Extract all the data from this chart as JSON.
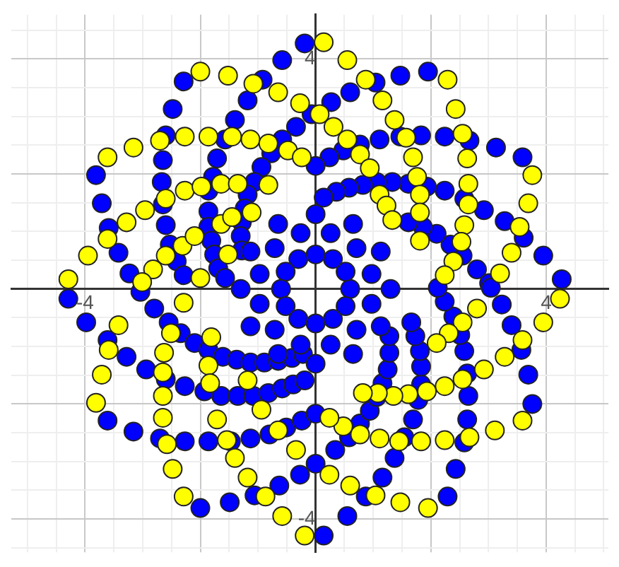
{
  "chart_data": {
    "type": "scatter",
    "grid": true,
    "marker": "circle",
    "legend": false,
    "xlim": [
      -5.28,
      5.08
    ],
    "ylim": [
      -4.58,
      4.77
    ],
    "xticks": [
      {
        "value": -5,
        "label": null
      },
      {
        "value": -4.5,
        "label": null
      },
      -4,
      {
        "value": -3.5,
        "label": null
      },
      {
        "value": -3,
        "label": null
      },
      {
        "value": -2.5,
        "label": null
      },
      {
        "value": -2,
        "label": null
      },
      {
        "value": -1.5,
        "label": null
      },
      {
        "value": -1,
        "label": null
      },
      {
        "value": -0.5,
        "label": null
      },
      {
        "value": 0,
        "label": null
      },
      {
        "value": 0.5,
        "label": null
      },
      {
        "value": 1,
        "label": null
      },
      {
        "value": 1.5,
        "label": null
      },
      {
        "value": 2,
        "label": null
      },
      {
        "value": 2.5,
        "label": null
      },
      {
        "value": 3,
        "label": null
      },
      {
        "value": 3.5,
        "label": null
      },
      4,
      {
        "value": 4.5,
        "label": null
      },
      {
        "value": 5,
        "label": null
      }
    ],
    "yticks": [
      {
        "value": -4.5,
        "label": null
      },
      -4,
      {
        "value": -3.5,
        "label": null
      },
      {
        "value": -3,
        "label": null
      },
      {
        "value": -2.5,
        "label": null
      },
      {
        "value": -2,
        "label": null
      },
      {
        "value": -1.5,
        "label": null
      },
      {
        "value": -1,
        "label": null
      },
      {
        "value": -0.5,
        "label": null
      },
      {
        "value": 0,
        "label": null
      },
      {
        "value": 0.5,
        "label": null
      },
      {
        "value": 1,
        "label": null
      },
      {
        "value": 1.5,
        "label": null
      },
      {
        "value": 2,
        "label": null
      },
      {
        "value": 2.5,
        "label": null
      },
      {
        "value": 3,
        "label": null
      },
      {
        "value": 3.5,
        "label": null
      },
      4,
      {
        "value": 4.5,
        "label": null
      }
    ],
    "series": [
      {
        "color": "#ffff00",
        "x": [
          -2.0,
          -1.52,
          -1.08,
          -0.65,
          -0.27,
          -3.61,
          -3.16,
          -2.7,
          -2.27,
          -1.86,
          -1.45,
          -1.13,
          -0.82,
          -0.48,
          -0.24,
          -2.27,
          -1.98,
          -1.64,
          -1.35,
          -0.82,
          -2.96,
          -3.28,
          -3.61,
          -3.95,
          -4.29,
          -2.82,
          -2.6,
          -2.31,
          -2.1,
          -1.64,
          -1.45,
          -1.11,
          -2.6,
          -3.01,
          -2.0,
          -1.52,
          0.14,
          0.55,
          0.87,
          1.16,
          1.37,
          1.57,
          1.69,
          1.76,
          1.81,
          1.81,
          2.29,
          2.43,
          2.55,
          2.63,
          2.65,
          2.65,
          2.58,
          2.53,
          2.39,
          2.24,
          3.76,
          3.69,
          3.54,
          3.4,
          3.2,
          0.31,
          0.55,
          0.77,
          0.94,
          1.11,
          1.23,
          0.07,
          1.33,
          1.81,
          -3.42,
          -3.59,
          -3.71,
          -3.81,
          -2.65,
          -2.65,
          -2.65,
          -2.63,
          -2.51,
          -2.29,
          -2.58,
          -2.48,
          -2.29,
          -1.71,
          -1.54,
          -1.4,
          -1.18,
          -0.87,
          -0.58,
          -0.19,
          -1.86,
          -1.83,
          -1.81,
          -1.18,
          -0.94,
          -0.65,
          -0.34,
          4.24,
          3.95,
          3.59,
          3.28,
          2.92,
          2.55,
          2.24,
          1.93,
          1.61,
          1.35,
          1.08,
          0.82,
          3.59,
          3.11,
          2.67,
          2.24,
          1.83,
          1.45,
          1.11,
          0.77,
          0.48,
          0.24,
          1.95,
          1.47,
          1.04,
          0.6,
          0.24,
          2.8,
          2.55,
          2.31,
          2.1
        ],
        "values": [
          3.78,
          3.71,
          3.57,
          3.42,
          3.23,
          2.29,
          2.46,
          2.58,
          2.65,
          2.65,
          2.65,
          2.6,
          2.53,
          2.41,
          2.29,
          1.71,
          1.78,
          1.83,
          1.83,
          1.81,
          1.37,
          1.16,
          0.87,
          0.58,
          0.17,
          0.34,
          0.58,
          0.75,
          0.92,
          1.13,
          1.25,
          1.33,
          1.57,
          0.12,
          0.19,
          0.6,
          4.29,
          3.98,
          3.64,
          3.28,
          2.94,
          2.63,
          2.29,
          1.95,
          1.64,
          1.33,
          3.64,
          3.13,
          2.7,
          2.27,
          1.83,
          1.47,
          1.11,
          0.82,
          0.48,
          0.24,
          1.98,
          1.49,
          1.08,
          0.63,
          0.27,
          2.82,
          2.6,
          2.34,
          2.1,
          1.64,
          1.45,
          3.04,
          1.2,
          0.84,
          -0.63,
          -1.06,
          -1.49,
          -1.98,
          -2.24,
          -1.86,
          -1.45,
          -1.11,
          -0.77,
          -0.24,
          -2.7,
          -3.13,
          -3.61,
          -2.27,
          -2.63,
          -2.94,
          -3.28,
          -3.61,
          -3.95,
          -4.29,
          -1.33,
          -1.64,
          -0.84,
          -1.59,
          -2.1,
          -2.46,
          -2.8,
          -0.17,
          -0.58,
          -0.89,
          -1.18,
          -1.4,
          -1.57,
          -1.69,
          -1.78,
          -1.83,
          -1.86,
          -1.81,
          -1.81,
          -2.29,
          -2.46,
          -2.58,
          -2.63,
          -2.65,
          -2.65,
          -2.6,
          -2.53,
          -2.39,
          -2.24,
          -3.81,
          -3.71,
          -3.59,
          -3.42,
          -3.23,
          -0.34,
          -0.58,
          -0.77,
          -0.94
        ]
      },
      {
        "color": "#0000ff",
        "x": [
          -0.19,
          -0.58,
          -2.29,
          -0.92,
          -1.18,
          -2.48,
          -1.4,
          -0.07,
          -0.34,
          -2.6,
          -1.57,
          -2.65,
          -1.71,
          -3.81,
          -2.67,
          -1.78,
          -3.71,
          -2.65,
          -3.59,
          -2.6,
          -3.42,
          -2.53,
          -3.23,
          -2.41,
          -2.29,
          -1.86,
          -1.86,
          -1.86,
          -1.81,
          -1.76,
          -1.69,
          -1.57,
          -0.58,
          -0.77,
          -0.94,
          -1.06,
          -1.18,
          -1.23,
          -1.28,
          -1.3,
          -1.28,
          1.95,
          1.47,
          1.04,
          0.6,
          0.27,
          1.11,
          1.47,
          1.83,
          2.24,
          2.67,
          3.13,
          3.59,
          0.77,
          0.48,
          0.24,
          0,
          2.24,
          2.58,
          2.92,
          3.28,
          3.61,
          3.95,
          4.27,
          2.8,
          3.01,
          2.55,
          2.34,
          2.1,
          1.86,
          1.61,
          1.93,
          1.61,
          1.33,
          1.06,
          0.82,
          0.58,
          0.36,
          0.14,
          -4.29,
          -3.98,
          -3.61,
          -3.28,
          -2.94,
          -2.6,
          -2.27,
          -1.93,
          -1.64,
          -1.35,
          -1.08,
          -0.82,
          -0.58,
          -0.39,
          -0.19,
          -3.61,
          -3.16,
          -2.7,
          -2.27,
          -1.86,
          -1.47,
          -1.13,
          -0.8,
          -0.51,
          -0.24,
          0,
          -2.0,
          -1.49,
          -1.06,
          -0.63,
          -0.27,
          0,
          -3.04,
          -2.8,
          -2.55,
          -2.34,
          -2.1,
          -1.86,
          -1.61,
          -1.37,
          -1.13,
          -0.89,
          -0.65,
          -0.41,
          -0.22,
          0.14,
          0.55,
          0.87,
          1.16,
          1.37,
          1.54,
          1.69,
          1.78,
          1.83,
          1.83,
          1.81,
          1.73,
          1.66,
          2.29,
          2.43,
          2.58,
          2.63,
          2.65,
          2.63,
          2.58,
          2.51,
          2.39,
          2.24,
          2.12,
          3.04,
          3.23,
          3.4,
          3.57,
          3.69,
          3.76,
          0.34,
          0.58,
          0.77,
          0.94,
          1.06,
          1.16,
          1.25,
          1.28,
          1.28,
          0.6,
          0.52,
          0.3,
          0,
          -0.3,
          -0.52,
          -0.6,
          -0.52,
          -0.3,
          0,
          0.3,
          0.52,
          0.97,
          0.71,
          0.26,
          -0.26,
          -0.71,
          -0.97,
          -0.97,
          -0.71,
          -0.26,
          0.26,
          0.71,
          0.97,
          1.3,
          1.13,
          0.65,
          0,
          -0.65,
          -1.13,
          -1.3,
          -1.13,
          -0.65,
          0,
          0.65,
          1.13
        ],
        "values": [
          4.27,
          3.98,
          3.61,
          3.64,
          3.28,
          3.13,
          2.94,
          3.04,
          2.82,
          2.67,
          2.6,
          2.24,
          2.27,
          1.98,
          1.86,
          1.95,
          1.49,
          1.47,
          1.06,
          1.11,
          0.63,
          0.77,
          0.27,
          0.48,
          0.24,
          1.71,
          1.35,
          1.08,
          0.84,
          0.6,
          0.36,
          0.19,
          2.6,
          2.36,
          2.12,
          1.86,
          1.64,
          1.4,
          1.16,
          0.92,
          0.67,
          3.78,
          3.71,
          3.59,
          3.42,
          3.25,
          2.6,
          2.65,
          2.67,
          2.65,
          2.58,
          2.46,
          2.29,
          2.51,
          2.41,
          2.29,
          2.14,
          1.71,
          1.57,
          1.37,
          1.18,
          0.89,
          0.58,
          0.17,
          0.34,
          0.1,
          0.58,
          0.77,
          0.96,
          1.08,
          1.16,
          1.78,
          1.83,
          1.86,
          1.86,
          1.81,
          1.76,
          1.69,
          1.59,
          -0.17,
          -0.58,
          -0.89,
          -1.18,
          -1.4,
          -1.57,
          -1.69,
          -1.78,
          -1.86,
          -1.86,
          -1.86,
          -1.81,
          -1.73,
          -1.66,
          -1.59,
          -2.29,
          -2.48,
          -2.6,
          -2.65,
          -2.65,
          -2.65,
          -2.6,
          -2.53,
          -2.41,
          -2.29,
          -2.17,
          -3.81,
          -3.71,
          -3.59,
          -3.42,
          -3.23,
          -3.04,
          -0.05,
          -0.34,
          -0.58,
          -0.77,
          -0.94,
          -1.06,
          -1.18,
          -1.23,
          -1.28,
          -1.28,
          -1.25,
          -1.2,
          -1.13,
          -4.29,
          -3.95,
          -3.61,
          -3.28,
          -2.94,
          -2.58,
          -2.27,
          -1.93,
          -1.66,
          -1.35,
          -1.08,
          -0.82,
          -0.58,
          -3.61,
          -3.13,
          -2.67,
          -2.27,
          -1.86,
          -1.47,
          -1.08,
          -0.8,
          -0.48,
          -0.22,
          0.02,
          0.02,
          -0.27,
          -0.63,
          -1.06,
          -1.49,
          -2.0,
          -2.8,
          -2.58,
          -2.34,
          -2.12,
          -1.88,
          -1.64,
          -1.4,
          -1.11,
          -0.82,
          0,
          0.3,
          0.52,
          0.6,
          0.52,
          0.3,
          0,
          -0.3,
          -0.52,
          -0.6,
          -0.52,
          -0.3,
          0.26,
          0.71,
          0.97,
          0.97,
          0.71,
          0.26,
          -0.26,
          -0.71,
          -0.97,
          -0.97,
          -0.71,
          -0.26,
          0,
          0.65,
          1.13,
          1.3,
          1.13,
          0.65,
          0,
          -0.65,
          -1.13,
          -1.3,
          -1.13,
          -0.65
        ]
      }
    ]
  }
}
